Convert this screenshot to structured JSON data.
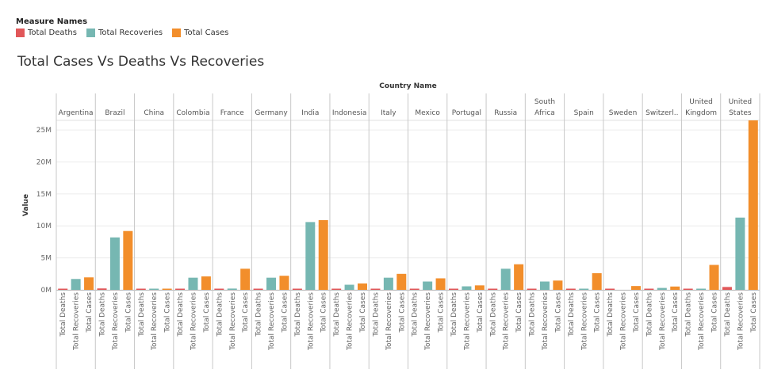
{
  "legend": {
    "title": "Measure Names",
    "items": [
      {
        "label": "Total Deaths",
        "color": "#e15759"
      },
      {
        "label": "Total Recoveries",
        "color": "#76b7b2"
      },
      {
        "label": "Total Cases",
        "color": "#f28e2b"
      }
    ]
  },
  "chart_data": {
    "type": "bar",
    "title": "Total Cases Vs Deaths Vs Recoveries",
    "column_header": "Country Name",
    "ylabel": "Value",
    "ylim": [
      0,
      26500000
    ],
    "y_ticks": [
      0,
      5000000,
      10000000,
      15000000,
      20000000,
      25000000
    ],
    "y_tick_labels": [
      "0M",
      "5M",
      "10M",
      "15M",
      "20M",
      "25M"
    ],
    "measures": [
      "Total Deaths",
      "Total Recoveries",
      "Total Cases"
    ],
    "measure_colors": [
      "#e15759",
      "#76b7b2",
      "#f28e2b"
    ],
    "countries": [
      {
        "name": [
          "Argentina"
        ],
        "values": [
          48000,
          1700000,
          1950000
        ]
      },
      {
        "name": [
          "Brazil"
        ],
        "values": [
          220000,
          8200000,
          9200000
        ]
      },
      {
        "name": [
          "China"
        ],
        "values": [
          4800,
          90000,
          98000
        ]
      },
      {
        "name": [
          "Colombia"
        ],
        "values": [
          55000,
          1900000,
          2100000
        ]
      },
      {
        "name": [
          "France"
        ],
        "values": [
          75000,
          200000,
          3300000
        ]
      },
      {
        "name": [
          "Germany"
        ],
        "values": [
          55000,
          1900000,
          2200000
        ]
      },
      {
        "name": [
          "India"
        ],
        "values": [
          155000,
          10600000,
          10900000
        ]
      },
      {
        "name": [
          "Indonesia"
        ],
        "values": [
          30000,
          800000,
          1000000
        ]
      },
      {
        "name": [
          "Italy"
        ],
        "values": [
          88000,
          1900000,
          2500000
        ]
      },
      {
        "name": [
          "Mexico"
        ],
        "values": [
          160000,
          1300000,
          1800000
        ]
      },
      {
        "name": [
          "Portugal"
        ],
        "values": [
          12000,
          550000,
          700000
        ]
      },
      {
        "name": [
          "Russia"
        ],
        "values": [
          72000,
          3300000,
          4000000
        ]
      },
      {
        "name": [
          "South",
          "Africa"
        ],
        "values": [
          45000,
          1300000,
          1450000
        ]
      },
      {
        "name": [
          "Spain"
        ],
        "values": [
          60000,
          150000,
          2600000
        ]
      },
      {
        "name": [
          "Sweden"
        ],
        "values": [
          11000,
          0,
          600000
        ]
      },
      {
        "name": [
          "Switzerl.."
        ],
        "values": [
          9000,
          300000,
          520000
        ]
      },
      {
        "name": [
          "United",
          "Kingdom"
        ],
        "values": [
          100000,
          6000,
          3900000
        ]
      },
      {
        "name": [
          "United",
          "States"
        ],
        "values": [
          450000,
          11300000,
          26500000
        ]
      }
    ]
  }
}
